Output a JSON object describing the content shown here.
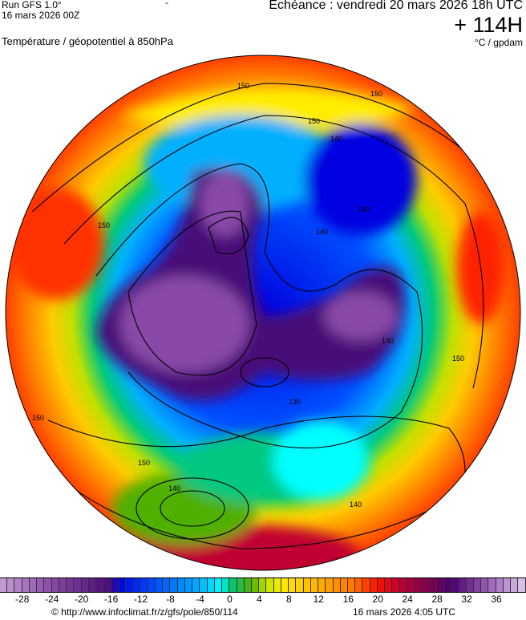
{
  "header": {
    "run": "Run GFS 1.0°",
    "run_date": "16 mars 2026 00Z",
    "dash": "-",
    "title": "Température / géopotentiel à 850hPa",
    "echeance": "Echéance : vendredi 20 mars 2026 18h UTC",
    "lead": "+ 114H",
    "units": "°C / gpdam"
  },
  "map": {
    "projection": "polar-stereographic-north",
    "contour_labels": [
      "150",
      "150",
      "150",
      "150",
      "150",
      "140",
      "140",
      "140",
      "130",
      "130",
      "130",
      "140",
      "150",
      "150",
      "150"
    ]
  },
  "colorbar": {
    "min": -31,
    "max": 40,
    "ticks": [
      -28,
      -24,
      -20,
      -16,
      -12,
      -8,
      -4,
      0,
      4,
      8,
      12,
      16,
      20,
      24,
      28,
      32,
      36
    ],
    "anchors": [
      {
        "v": -31,
        "c": "#c8a0d8"
      },
      {
        "v": -24,
        "c": "#8a4aa8"
      },
      {
        "v": -16,
        "c": "#4a0a78"
      },
      {
        "v": -15,
        "c": "#0000e0"
      },
      {
        "v": -10,
        "c": "#0050ff"
      },
      {
        "v": -4,
        "c": "#00b0ff"
      },
      {
        "v": -1,
        "c": "#00ffff"
      },
      {
        "v": 0,
        "c": "#00c880"
      },
      {
        "v": 3,
        "c": "#50b000"
      },
      {
        "v": 5,
        "c": "#c0e000"
      },
      {
        "v": 7,
        "c": "#ffee00"
      },
      {
        "v": 12,
        "c": "#ffb000"
      },
      {
        "v": 17,
        "c": "#ff7000"
      },
      {
        "v": 20,
        "c": "#ff1000"
      },
      {
        "v": 23,
        "c": "#c00030"
      },
      {
        "v": 27,
        "c": "#800050"
      },
      {
        "v": 30,
        "c": "#4a0070"
      },
      {
        "v": 34,
        "c": "#8a4aa8"
      },
      {
        "v": 40,
        "c": "#e0c8f0"
      }
    ]
  },
  "footer": {
    "copyright": "© http://www.infoclimat.fr/z/gfs/pole/850/114",
    "generated": "16 mars 2026  4:05 UTC"
  }
}
